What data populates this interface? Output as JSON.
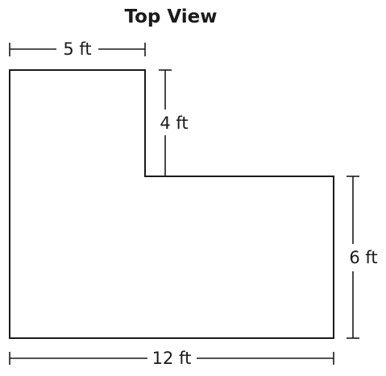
{
  "title": "Top View",
  "dimensions": {
    "top_width": "5 ft",
    "notch_depth": "4 ft",
    "right_height": "6 ft",
    "bottom_width": "12 ft"
  },
  "colors": {
    "ink": "#1a1a1a",
    "background": "#ffffff"
  }
}
